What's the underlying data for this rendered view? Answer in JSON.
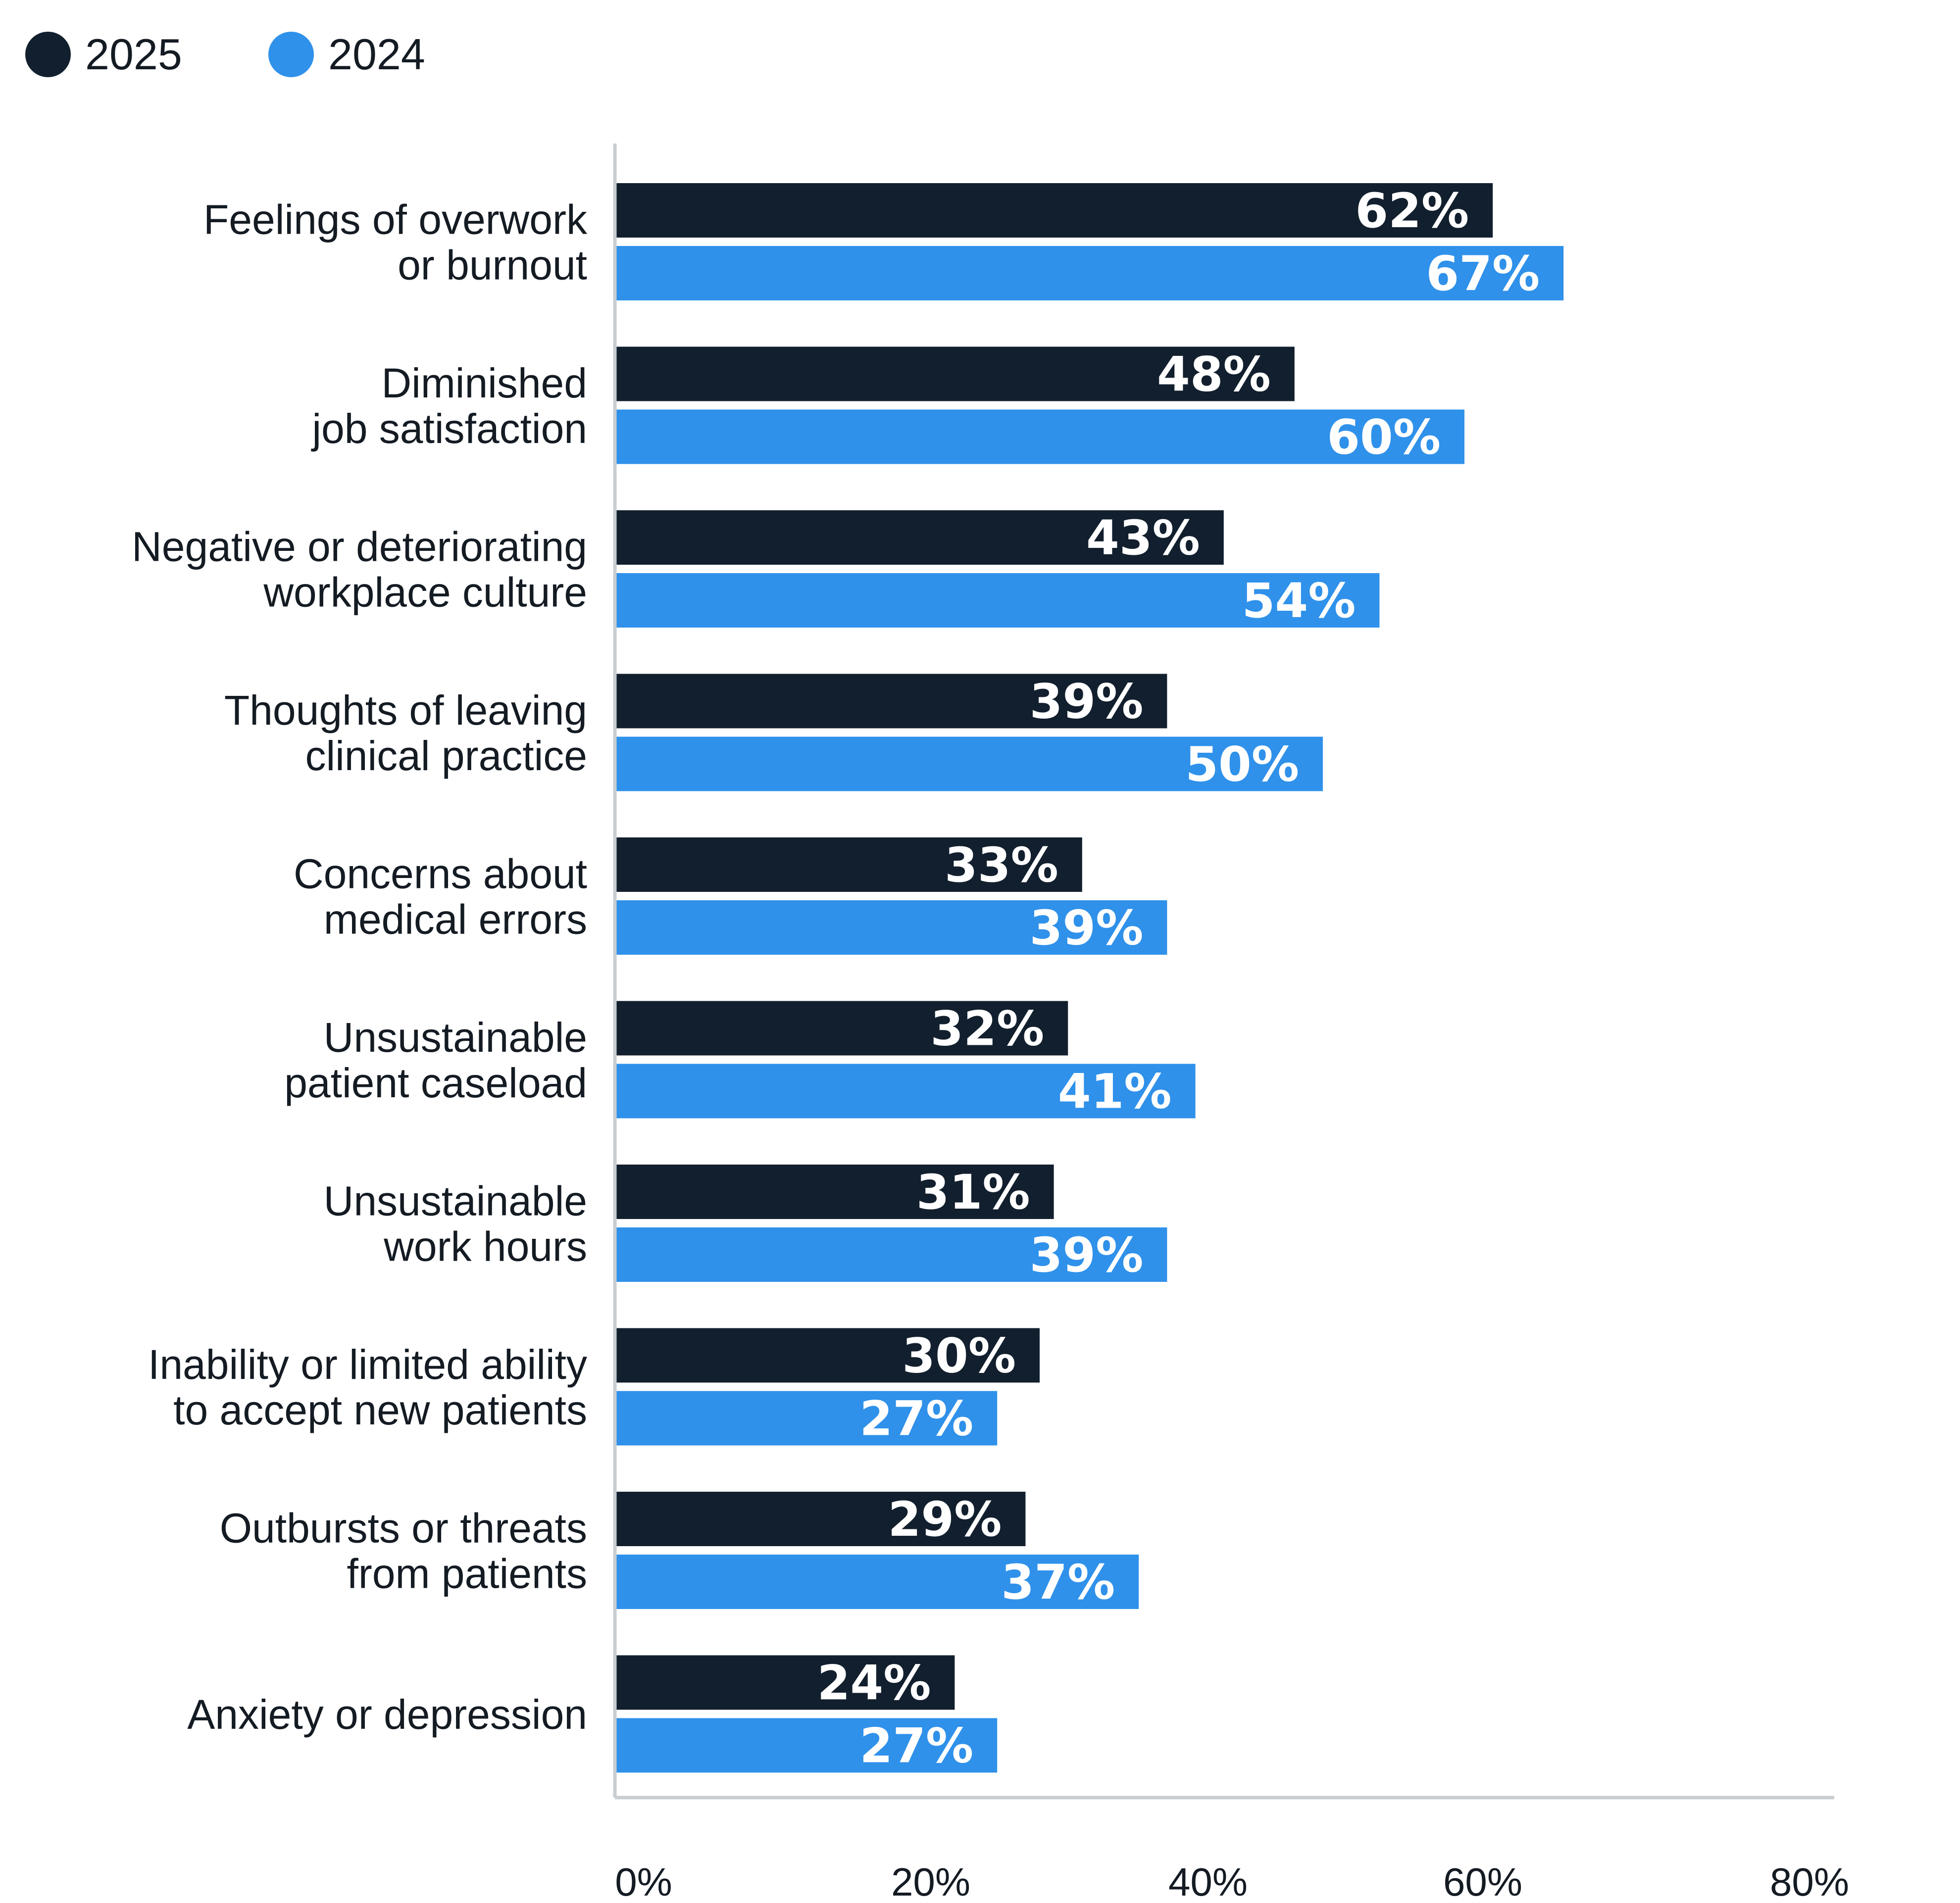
{
  "chart_data": {
    "type": "bar",
    "orientation": "horizontal",
    "categories": [
      [
        "Feelings of overwork",
        "or burnout"
      ],
      [
        "Diminished",
        "job satisfaction"
      ],
      [
        "Negative or deteriorating",
        "workplace culture"
      ],
      [
        "Thoughts of leaving",
        "clinical practice"
      ],
      [
        "Concerns about",
        "medical errors"
      ],
      [
        "Unsustainable",
        "patient caseload"
      ],
      [
        "Unsustainable",
        "work hours"
      ],
      [
        "Inability or limited ability",
        "to accept new patients"
      ],
      [
        "Outbursts or threats",
        "from patients"
      ],
      [
        "Anxiety or depression"
      ]
    ],
    "series": [
      {
        "name": "2025",
        "color": "#121f2e",
        "values": [
          62,
          48,
          43,
          39,
          33,
          32,
          31,
          30,
          29,
          24
        ],
        "labels": [
          "62%",
          "48%",
          "43%",
          "39%",
          "33%",
          "32%",
          "31%",
          "30%",
          "29%",
          "24%"
        ]
      },
      {
        "name": "2024",
        "color": "#2f91ea",
        "values": [
          67,
          60,
          54,
          50,
          39,
          41,
          39,
          27,
          37,
          27
        ],
        "labels": [
          "67%",
          "60%",
          "54%",
          "50%",
          "39%",
          "41%",
          "39%",
          "27%",
          "37%",
          "27%"
        ]
      }
    ],
    "xlim": [
      0,
      80
    ],
    "xticks": [
      0,
      20,
      40,
      60,
      80
    ],
    "xtick_labels": [
      "0%",
      "20%",
      "40%",
      "60%",
      "80%"
    ],
    "grid": false,
    "legend": "top-left",
    "axis_color": "#c9cdd2"
  }
}
